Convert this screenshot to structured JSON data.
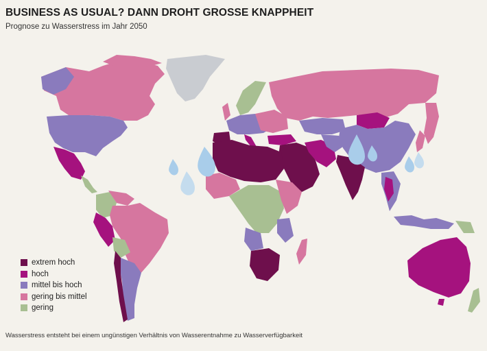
{
  "title": "BUSINESS AS USUAL? DANN DROHT GROSSE KNAPPHEIT",
  "subtitle": "Prognose zu Wasserstress im Jahr 2050",
  "footnote": "Wasserstress entsteht bei einem ungünstigen Verhältnis von Wasserentnahme zu Wasserverfügbarkeit",
  "colors": {
    "background": "#f4f2ec",
    "extrem_hoch": "#6e0f4c",
    "hoch": "#a5127e",
    "mittel_bis_hoch": "#8a7bbd",
    "gering_bis_mittel": "#d6769f",
    "gering": "#a8bf92",
    "greenland": "#c9ccd1",
    "water_drop": "#a9cdea",
    "water_drop_dark": "#8fbfe5"
  },
  "legend": [
    {
      "label": "extrem hoch",
      "color": "#6e0f4c"
    },
    {
      "label": "hoch",
      "color": "#a5127e"
    },
    {
      "label": "mittel bis hoch",
      "color": "#8a7bbd"
    },
    {
      "label": "gering bis mittel",
      "color": "#d6769f"
    },
    {
      "label": "gering",
      "color": "#a8bf92"
    }
  ],
  "regions": {
    "canada": "gering bis mittel",
    "usa": "mittel bis hoch",
    "mexico": "hoch",
    "central_america": "gering",
    "colombia": "gering",
    "venezuela": "gering bis mittel",
    "brazil": "gering bis mittel",
    "peru": "hoch",
    "bolivia": "gering",
    "chile": "extrem hoch",
    "argentina": "mittel bis hoch",
    "greenland": "no data",
    "scandinavia": "gering",
    "western_europe": "mittel bis hoch",
    "spain": "extrem hoch",
    "russia": "gering bis mittel",
    "kazakhstan": "mittel bis hoch",
    "mongolia": "hoch",
    "china": "mittel bis hoch",
    "north_africa": "extrem hoch",
    "middle_east": "extrem hoch",
    "iran": "hoch",
    "india": "extrem hoch",
    "southeast_asia": "mittel bis hoch",
    "central_africa": "gering",
    "east_africa": "gering bis mittel",
    "south_africa": "extrem hoch",
    "madagascar": "gering bis mittel",
    "australia": "hoch",
    "indonesia": "mittel bis hoch",
    "new_zealand": "gering"
  }
}
